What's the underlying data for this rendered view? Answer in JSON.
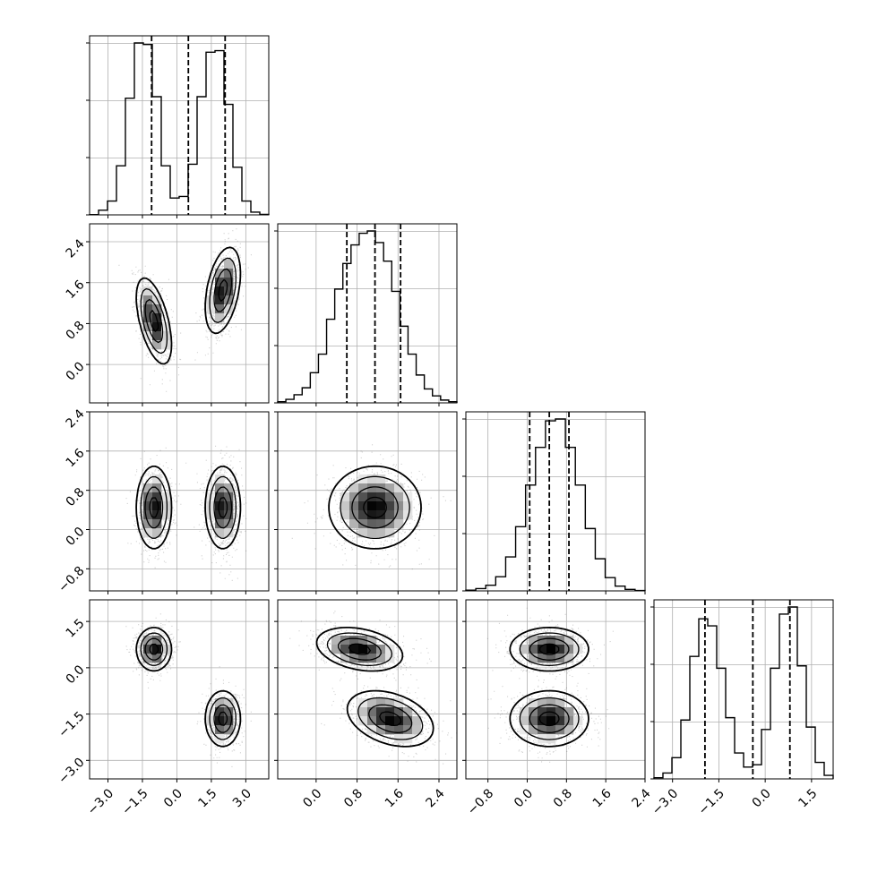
{
  "chart_data": {
    "type": "corner",
    "n_params": 4,
    "grid": true,
    "quantile_lines": "dashed",
    "colors": {
      "line": "#000000",
      "grid": "#b0b0b0",
      "points": "#555555"
    },
    "params": [
      {
        "range": [
          -3.8,
          4.0
        ],
        "ticks": [
          -3.0,
          -1.5,
          0.0,
          1.5,
          3.0
        ],
        "tick_labels": [
          "−3.0",
          "−1.5",
          "0.0",
          "1.5",
          "3.0"
        ],
        "quantiles": [
          -1.1,
          0.5,
          2.1
        ],
        "hist": [
          2,
          30,
          90,
          320,
          760,
          1120,
          1110,
          770,
          320,
          110,
          120,
          330,
          770,
          1060,
          1070,
          720,
          310,
          90,
          18,
          3
        ],
        "modes": [
          {
            "c": -1.0,
            "s": 0.5,
            "w": 0.5
          },
          {
            "c": 2.0,
            "s": 0.5,
            "w": 0.5
          }
        ]
      },
      {
        "range": [
          -0.75,
          2.75
        ],
        "ticks": [
          0.0,
          0.8,
          1.6,
          2.4
        ],
        "tick_labels": [
          "0.0",
          "0.8",
          "1.6",
          "2.4"
        ],
        "quantiles": [
          0.6,
          1.15,
          1.65
        ],
        "hist": [
          5,
          15,
          35,
          65,
          130,
          210,
          360,
          490,
          600,
          680,
          730,
          740,
          690,
          610,
          480,
          330,
          210,
          120,
          60,
          30,
          12,
          5
        ],
        "modes": [
          {
            "c": 1.15,
            "s": 0.45,
            "w": 1.0
          }
        ]
      },
      {
        "range": [
          -1.25,
          2.4
        ],
        "ticks": [
          -0.8,
          0.0,
          0.8,
          1.6,
          2.4
        ],
        "tick_labels": [
          "−0.8",
          "0.0",
          "0.8",
          "1.6",
          "2.4"
        ],
        "quantiles": [
          0.05,
          0.45,
          0.85
        ],
        "hist": [
          4,
          12,
          30,
          75,
          180,
          340,
          560,
          760,
          900,
          910,
          760,
          560,
          330,
          170,
          70,
          25,
          8,
          2
        ],
        "modes": [
          {
            "c": 0.45,
            "s": 0.4,
            "w": 1.0
          }
        ]
      },
      {
        "range": [
          -3.6,
          2.2
        ],
        "ticks": [
          -3.0,
          -1.5,
          0.0,
          1.5
        ],
        "tick_labels": [
          "−3.0",
          "−1.5",
          "0.0",
          "1.5"
        ],
        "quantiles": [
          -1.95,
          -0.4,
          0.8
        ],
        "hist": [
          5,
          25,
          90,
          250,
          520,
          680,
          650,
          470,
          260,
          110,
          50,
          60,
          210,
          470,
          700,
          730,
          480,
          220,
          70,
          15
        ],
        "modes": [
          {
            "c": -1.65,
            "s": 0.45,
            "w": 0.5
          },
          {
            "c": 0.6,
            "s": 0.4,
            "w": 0.5
          }
        ]
      }
    ],
    "pair_clusters": {
      "1-0": [
        {
          "mx": -1.0,
          "my": 0.85,
          "sx": 0.38,
          "sy": 0.42,
          "r": -0.55
        },
        {
          "mx": 2.0,
          "my": 1.45,
          "sx": 0.38,
          "sy": 0.42,
          "r": 0.4
        }
      ],
      "2-0": [
        {
          "mx": -1.0,
          "my": 0.45,
          "sx": 0.38,
          "sy": 0.42,
          "r": 0.0
        },
        {
          "mx": 2.0,
          "my": 0.45,
          "sx": 0.38,
          "sy": 0.42,
          "r": 0.0
        }
      ],
      "3-0": [
        {
          "mx": -1.0,
          "my": 0.6,
          "sx": 0.38,
          "sy": 0.35,
          "r": 0.0
        },
        {
          "mx": 2.0,
          "my": -1.65,
          "sx": 0.38,
          "sy": 0.45,
          "r": 0.0
        }
      ],
      "2-1": [
        {
          "mx": 1.15,
          "my": 0.45,
          "sx": 0.45,
          "sy": 0.42,
          "r": 0.0
        }
      ],
      "3-1": [
        {
          "mx": 0.85,
          "my": 0.6,
          "sx": 0.42,
          "sy": 0.35,
          "r": -0.3
        },
        {
          "mx": 1.45,
          "my": -1.65,
          "sx": 0.42,
          "sy": 0.45,
          "r": -0.35
        }
      ],
      "3-2": [
        {
          "mx": 0.45,
          "my": 0.6,
          "sx": 0.4,
          "sy": 0.35,
          "r": 0.0
        },
        {
          "mx": 0.45,
          "my": -1.65,
          "sx": 0.4,
          "sy": 0.45,
          "r": 0.0
        }
      ]
    },
    "contour_levels_sigma": [
      0.5,
      1.0,
      1.5,
      2.0
    ]
  }
}
